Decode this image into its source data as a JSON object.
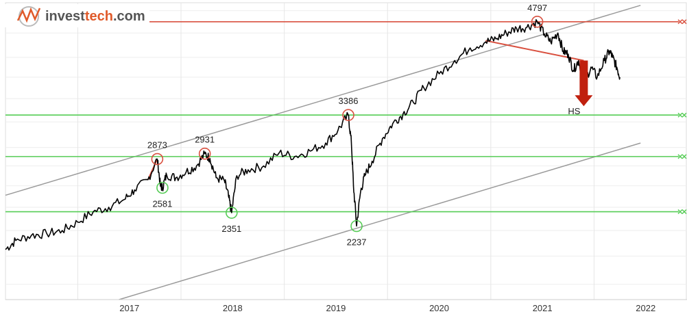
{
  "brand": {
    "name_dark": "invest",
    "name_accent": "tech",
    "name_tail": ".com",
    "accent_color": "#e05a2a"
  },
  "chart_data": {
    "type": "line",
    "title": "",
    "xlabel": "",
    "ylabel": "",
    "x_ticks": [
      "2017",
      "2018",
      "2019",
      "2020",
      "2021",
      "2022"
    ],
    "xlim": [
      2016.3,
      2022.9
    ],
    "ylim": [
      1700,
      5150
    ],
    "log_scale": true,
    "grid": true,
    "colors": {
      "price": "#000000",
      "support": "#55cc55",
      "resistance": "#d9503f",
      "channel": "#9a9a9a",
      "arrow": "#c0200f"
    },
    "series": [
      {
        "values": [
          [
            2016.3,
            2050
          ],
          [
            2016.4,
            2120
          ],
          [
            2016.55,
            2160
          ],
          [
            2016.7,
            2175
          ],
          [
            2016.85,
            2200
          ],
          [
            2017.0,
            2270
          ],
          [
            2017.15,
            2360
          ],
          [
            2017.3,
            2400
          ],
          [
            2017.45,
            2470
          ],
          [
            2017.55,
            2560
          ],
          [
            2017.68,
            2660
          ],
          [
            2017.77,
            2873
          ],
          [
            2017.8,
            2600
          ],
          [
            2017.82,
            2581
          ],
          [
            2017.86,
            2710
          ],
          [
            2017.95,
            2680
          ],
          [
            2018.05,
            2740
          ],
          [
            2018.15,
            2800
          ],
          [
            2018.23,
            2931
          ],
          [
            2018.28,
            2880
          ],
          [
            2018.34,
            2680
          ],
          [
            2018.42,
            2650
          ],
          [
            2018.46,
            2500
          ],
          [
            2018.49,
            2351
          ],
          [
            2018.54,
            2700
          ],
          [
            2018.65,
            2760
          ],
          [
            2018.8,
            2800
          ],
          [
            2018.95,
            2940
          ],
          [
            2019.1,
            2900
          ],
          [
            2019.25,
            2960
          ],
          [
            2019.4,
            3050
          ],
          [
            2019.52,
            3200
          ],
          [
            2019.62,
            3386
          ],
          [
            2019.65,
            3050
          ],
          [
            2019.67,
            2600
          ],
          [
            2019.7,
            2237
          ],
          [
            2019.74,
            2550
          ],
          [
            2019.78,
            2700
          ],
          [
            2019.85,
            2850
          ],
          [
            2019.95,
            3100
          ],
          [
            2020.05,
            3280
          ],
          [
            2020.15,
            3400
          ],
          [
            2020.25,
            3550
          ],
          [
            2020.35,
            3750
          ],
          [
            2020.5,
            3950
          ],
          [
            2020.65,
            4150
          ],
          [
            2020.8,
            4350
          ],
          [
            2020.95,
            4450
          ],
          [
            2021.05,
            4500
          ],
          [
            2021.15,
            4600
          ],
          [
            2021.25,
            4680
          ],
          [
            2021.35,
            4700
          ],
          [
            2021.45,
            4797
          ],
          [
            2021.52,
            4580
          ],
          [
            2021.58,
            4450
          ],
          [
            2021.65,
            4600
          ],
          [
            2021.7,
            4300
          ],
          [
            2021.75,
            4250
          ],
          [
            2021.8,
            4000
          ],
          [
            2021.85,
            4150
          ],
          [
            2021.9,
            3800
          ],
          [
            2021.97,
            4050
          ],
          [
            2022.03,
            3900
          ],
          [
            2022.1,
            4150
          ],
          [
            2022.15,
            4300
          ],
          [
            2022.18,
            4200
          ],
          [
            2022.22,
            4050
          ],
          [
            2022.25,
            3900
          ]
        ]
      }
    ],
    "horizontal_levels": [
      {
        "value": 4797,
        "role": "resistance"
      },
      {
        "value": 3386,
        "role": "support"
      },
      {
        "value": 2900,
        "role": "support"
      },
      {
        "value": 2360,
        "role": "support"
      }
    ],
    "channel_lines": [
      {
        "from": [
          2016.3,
          2510
        ],
        "to": [
          2022.45,
          5100
        ]
      },
      {
        "from": [
          2017.4,
          1700
        ],
        "to": [
          2022.45,
          3050
        ]
      }
    ],
    "trend_segments": [
      {
        "from": [
          2017.68,
          2660
        ],
        "to": [
          2017.77,
          2873
        ]
      },
      {
        "from": [
          2020.95,
          4470
        ],
        "to": [
          2021.9,
          4150
        ]
      }
    ],
    "pattern": {
      "label": "HS",
      "arrow_from": [
        2021.9,
        4150
      ],
      "arrow_to": [
        2021.9,
        3500
      ]
    },
    "annotations": [
      {
        "text": "2873",
        "x": 2017.77,
        "y": 2873,
        "kind": "high",
        "label_pos": "above"
      },
      {
        "text": "2581",
        "x": 2017.82,
        "y": 2581,
        "kind": "low",
        "label_pos": "below"
      },
      {
        "text": "2931",
        "x": 2018.23,
        "y": 2931,
        "kind": "high",
        "label_pos": "above"
      },
      {
        "text": "2351",
        "x": 2018.49,
        "y": 2351,
        "kind": "low",
        "label_pos": "below"
      },
      {
        "text": "3386",
        "x": 2019.62,
        "y": 3386,
        "kind": "high",
        "label_pos": "above"
      },
      {
        "text": "2237",
        "x": 2019.7,
        "y": 2237,
        "kind": "low",
        "label_pos": "below"
      },
      {
        "text": "4797",
        "x": 2021.45,
        "y": 4797,
        "kind": "high",
        "label_pos": "above"
      }
    ]
  }
}
